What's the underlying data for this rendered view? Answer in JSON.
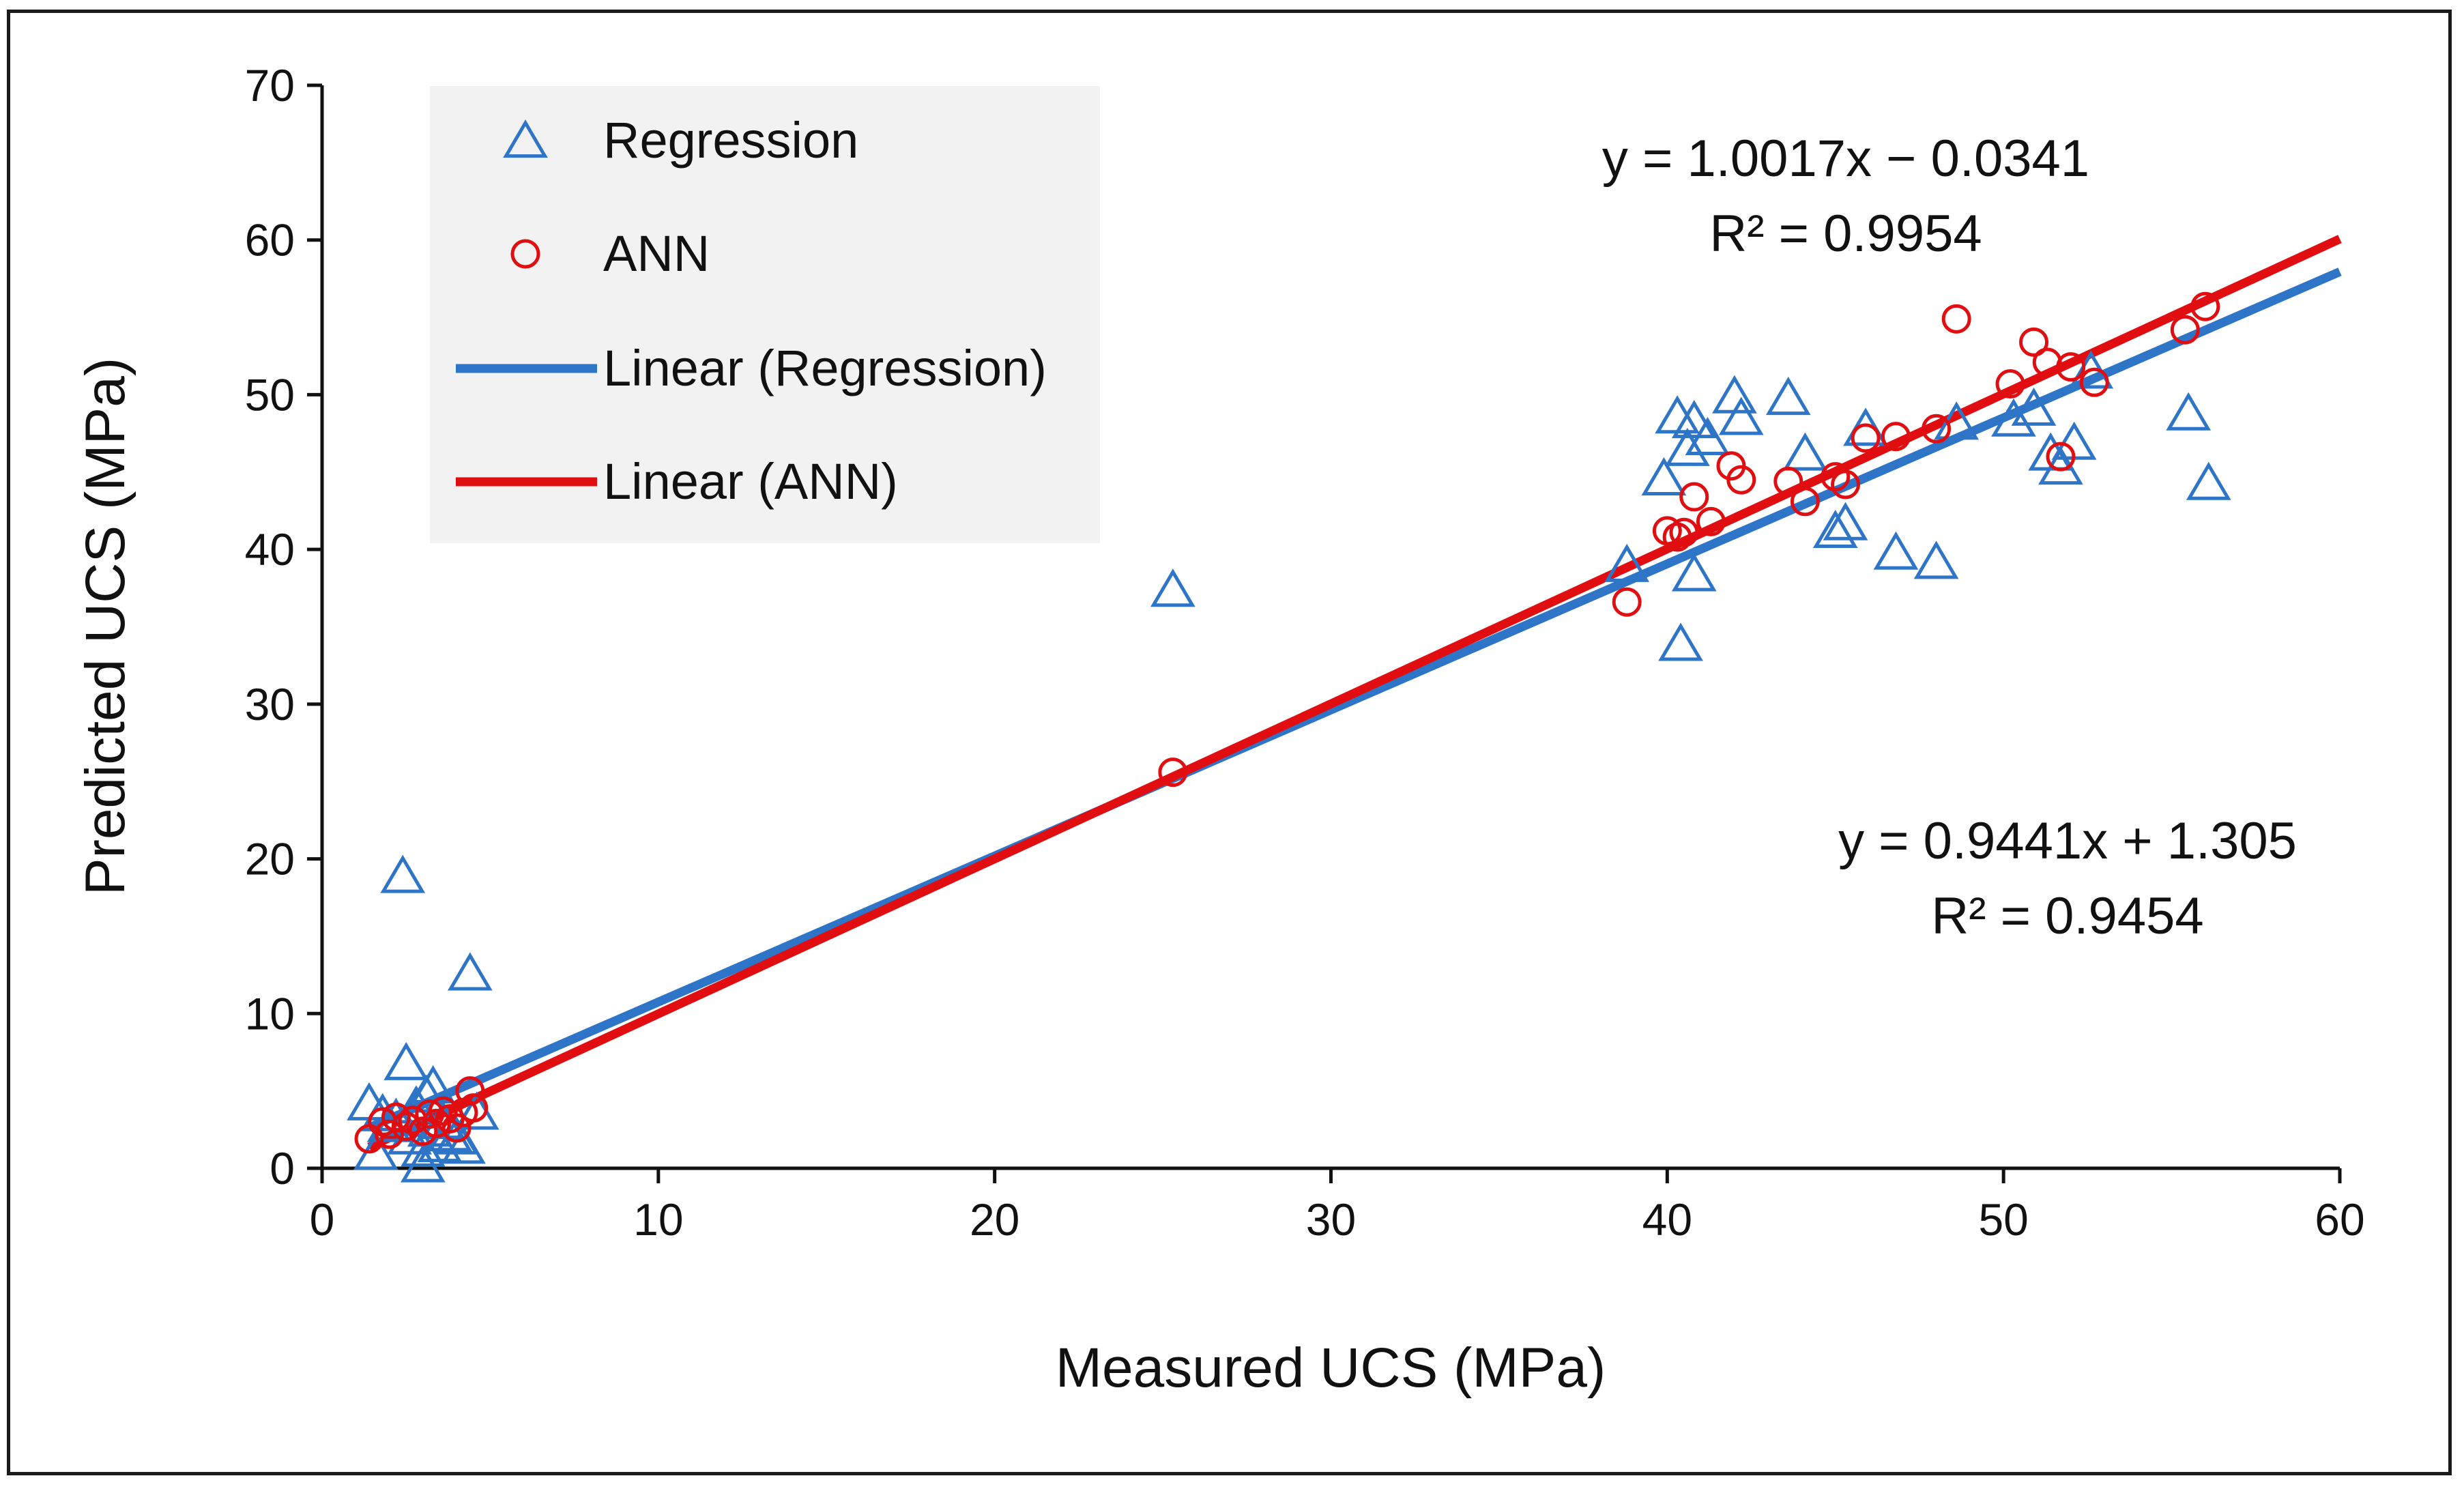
{
  "chart_data": {
    "type": "scatter",
    "xlabel": "Measured UCS (MPa)",
    "ylabel": "Predicted UCS (MPa)",
    "xlim": [
      0,
      60
    ],
    "ylim": [
      0,
      70
    ],
    "xticks": [
      0,
      10,
      20,
      30,
      40,
      50,
      60
    ],
    "yticks": [
      0,
      10,
      20,
      30,
      40,
      50,
      60,
      70
    ],
    "grid": false,
    "legend_position": "top-left",
    "legend": [
      {
        "label": "Regression",
        "marker": "triangle",
        "color": "#2E75C8"
      },
      {
        "label": "ANN",
        "marker": "circle",
        "color": "#E00E10"
      },
      {
        "label": "Linear (Regression)",
        "marker": "line",
        "color": "#2E75C8"
      },
      {
        "label": "Linear (ANN)",
        "marker": "line",
        "color": "#E00E10"
      }
    ],
    "series": [
      {
        "name": "Regression",
        "marker": "triangle",
        "color": "#2E75C8",
        "points": [
          [
            1.4,
            4.2
          ],
          [
            1.6,
            1.0
          ],
          [
            1.8,
            3.5
          ],
          [
            2.0,
            2.8
          ],
          [
            2.2,
            3.2
          ],
          [
            2.4,
            18.9
          ],
          [
            2.5,
            6.8
          ],
          [
            2.6,
            2.0
          ],
          [
            2.8,
            4.0
          ],
          [
            3.0,
            1.2
          ],
          [
            3.0,
            0.2
          ],
          [
            3.1,
            4.7
          ],
          [
            3.2,
            2.5
          ],
          [
            3.3,
            5.3
          ],
          [
            3.5,
            1.5
          ],
          [
            3.6,
            3.0
          ],
          [
            3.8,
            2.2
          ],
          [
            4.0,
            2.0
          ],
          [
            4.2,
            1.4
          ],
          [
            4.4,
            12.6
          ],
          [
            4.6,
            3.6
          ],
          [
            25.3,
            37.4
          ],
          [
            38.8,
            39.0
          ],
          [
            39.9,
            44.6
          ],
          [
            40.3,
            48.6
          ],
          [
            40.4,
            33.9
          ],
          [
            40.6,
            46.5
          ],
          [
            40.8,
            48.3
          ],
          [
            40.8,
            38.4
          ],
          [
            41.2,
            47.2
          ],
          [
            42.0,
            49.9
          ],
          [
            42.2,
            48.5
          ],
          [
            43.6,
            49.8
          ],
          [
            44.1,
            46.2
          ],
          [
            45.0,
            41.2
          ],
          [
            45.3,
            41.7
          ],
          [
            45.9,
            47.8
          ],
          [
            46.8,
            39.8
          ],
          [
            48.0,
            39.2
          ],
          [
            48.6,
            48.2
          ],
          [
            50.3,
            48.4
          ],
          [
            50.9,
            49.1
          ],
          [
            51.4,
            46.2
          ],
          [
            51.7,
            45.3
          ],
          [
            52.1,
            46.9
          ],
          [
            52.6,
            51.5
          ],
          [
            55.5,
            48.8
          ],
          [
            56.1,
            44.3
          ]
        ]
      },
      {
        "name": "ANN",
        "marker": "circle",
        "color": "#E00E10",
        "points": [
          [
            1.4,
            1.9
          ],
          [
            1.8,
            3.0
          ],
          [
            2.0,
            2.2
          ],
          [
            2.2,
            3.3
          ],
          [
            2.5,
            2.7
          ],
          [
            2.7,
            3.1
          ],
          [
            3.0,
            2.4
          ],
          [
            3.2,
            3.5
          ],
          [
            3.4,
            2.9
          ],
          [
            3.6,
            3.7
          ],
          [
            3.8,
            3.2
          ],
          [
            4.0,
            2.6
          ],
          [
            4.2,
            3.6
          ],
          [
            4.4,
            5.0
          ],
          [
            4.5,
            3.9
          ],
          [
            25.3,
            25.6
          ],
          [
            38.8,
            36.6
          ],
          [
            40.0,
            41.2
          ],
          [
            40.3,
            40.8
          ],
          [
            40.5,
            41.1
          ],
          [
            40.8,
            43.4
          ],
          [
            41.3,
            41.8
          ],
          [
            41.9,
            45.4
          ],
          [
            42.2,
            44.5
          ],
          [
            43.6,
            44.4
          ],
          [
            44.1,
            43.1
          ],
          [
            45.0,
            44.7
          ],
          [
            45.3,
            44.2
          ],
          [
            45.9,
            47.2
          ],
          [
            46.8,
            47.3
          ],
          [
            48.0,
            47.8
          ],
          [
            48.6,
            54.9
          ],
          [
            50.2,
            50.7
          ],
          [
            50.9,
            53.4
          ],
          [
            51.3,
            52.1
          ],
          [
            51.7,
            46.0
          ],
          [
            52.0,
            51.8
          ],
          [
            52.7,
            50.8
          ],
          [
            55.4,
            54.2
          ],
          [
            56.0,
            55.7
          ]
        ]
      }
    ],
    "trendlines": [
      {
        "name": "Linear (Regression)",
        "slope": 0.9441,
        "intercept": 1.305,
        "r2": 0.9454,
        "x_range": [
          1.4,
          60
        ],
        "color": "#2E75C8"
      },
      {
        "name": "Linear (ANN)",
        "slope": 1.0017,
        "intercept": -0.0341,
        "r2": 0.9954,
        "x_range": [
          1.4,
          60
        ],
        "color": "#E00E10"
      }
    ],
    "annotations": {
      "ann_equation": "y = 1.0017x − 0.0341",
      "ann_r2": "R² = 0.9954",
      "reg_equation": "y = 0.9441x + 1.305",
      "reg_r2": "R² = 0.9454"
    }
  }
}
